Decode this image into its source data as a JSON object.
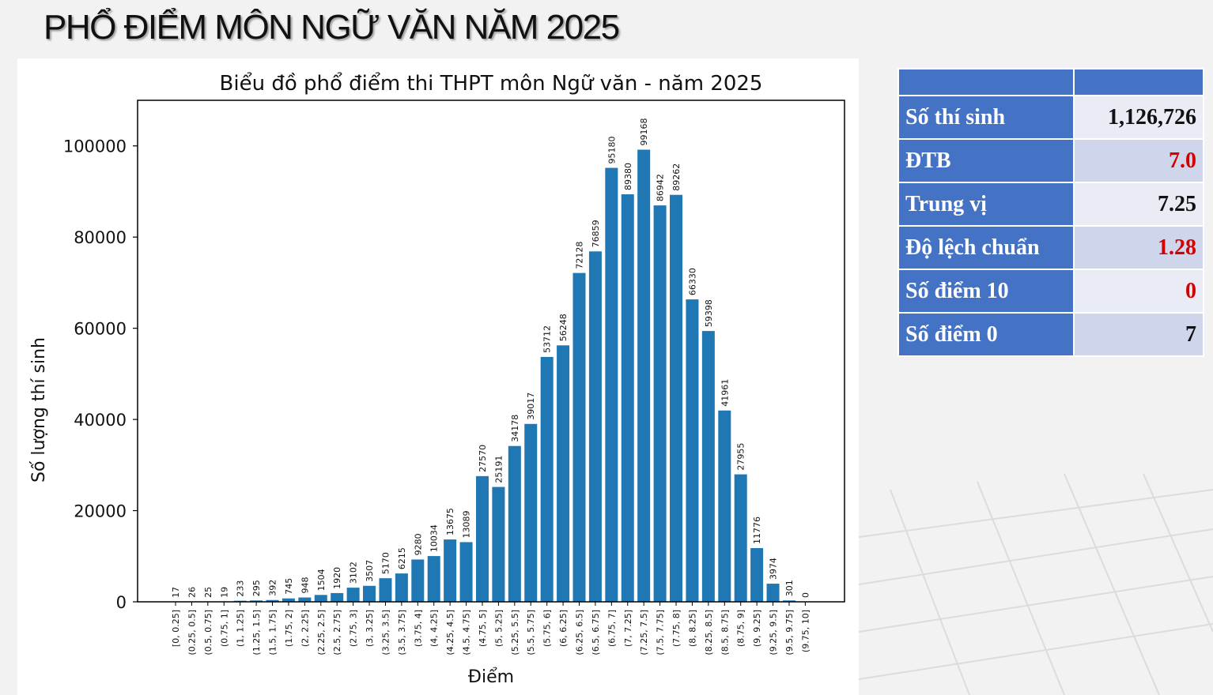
{
  "page": {
    "title": "PHỔ ĐIỂM MÔN NGỮ VĂN NĂM 2025"
  },
  "stats_table": {
    "rows": [
      {
        "label": "Số thí sinh",
        "value": "1,126,726",
        "highlight": false
      },
      {
        "label": "ĐTB",
        "value": "7.0",
        "highlight": true
      },
      {
        "label": "Trung vị",
        "value": "7.25",
        "highlight": false
      },
      {
        "label": "Độ lệch chuẩn",
        "value": "1.28",
        "highlight": true
      },
      {
        "label": "Số điểm 10",
        "value": "0",
        "highlight": true
      },
      {
        "label": "Số điểm 0",
        "value": "7",
        "highlight": false
      }
    ],
    "colors": {
      "header": "#4472c4",
      "highlight_text": "#d40000"
    }
  },
  "chart_data": {
    "type": "bar",
    "title": "Biểu đồ phổ điểm thi THPT môn Ngữ văn - năm 2025",
    "xlabel": "Điểm",
    "ylabel": "Số lượng thí sinh",
    "ylim": [
      0,
      110000
    ],
    "yticks": [
      0,
      20000,
      40000,
      60000,
      80000,
      100000
    ],
    "bar_color": "#1f77b4",
    "grid": false,
    "categories": [
      "[0, 0.25]",
      "(0.25, 0.5]",
      "(0.5, 0.75]",
      "(0.75, 1]",
      "(1, 1.25]",
      "(1.25, 1.5]",
      "(1.5, 1.75]",
      "(1.75, 2]",
      "(2, 2.25]",
      "(2.25, 2.5]",
      "(2.5, 2.75]",
      "(2.75, 3]",
      "(3, 3.25]",
      "(3.25, 3.5]",
      "(3.5, 3.75]",
      "(3.75, 4]",
      "(4, 4.25]",
      "(4.25, 4.5]",
      "(4.5, 4.75]",
      "(4.75, 5]",
      "(5, 5.25]",
      "(5.25, 5.5]",
      "(5.5, 5.75]",
      "(5.75, 6]",
      "(6, 6.25]",
      "(6.25, 6.5]",
      "(6.5, 6.75]",
      "(6.75, 7]",
      "(7, 7.25]",
      "(7.25, 7.5]",
      "(7.5, 7.75]",
      "(7.75, 8]",
      "(8, 8.25]",
      "(8.25, 8.5]",
      "(8.5, 8.75]",
      "(8.75, 9]",
      "(9, 9.25]",
      "(9.25, 9.5]",
      "(9.5, 9.75]",
      "(9.75, 10]"
    ],
    "values": [
      17,
      26,
      25,
      19,
      233,
      295,
      392,
      745,
      948,
      1504,
      1920,
      3102,
      3507,
      5170,
      6215,
      9280,
      10034,
      13675,
      13089,
      27570,
      25191,
      34178,
      39017,
      53712,
      56248,
      72128,
      76859,
      95180,
      89380,
      99168,
      86942,
      89262,
      66330,
      59398,
      41961,
      27955,
      11776,
      3974,
      301,
      0
    ]
  }
}
